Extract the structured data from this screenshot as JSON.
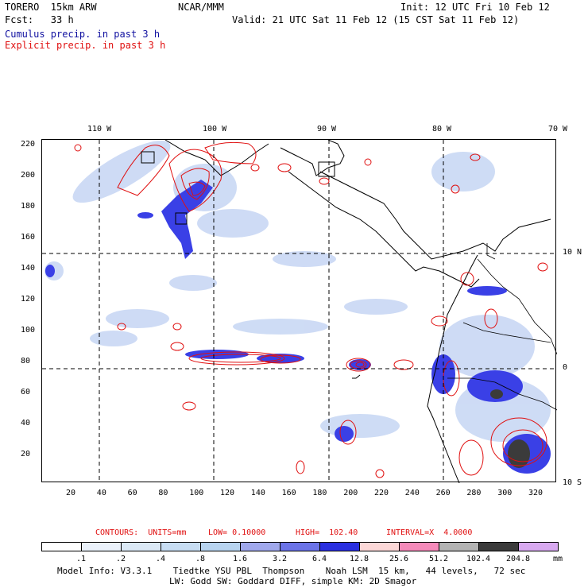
{
  "header": {
    "model": "TORERO  15km ARW",
    "org": "NCAR/MMM",
    "init": "Init: 12 UTC Fri 10 Feb 12",
    "fcst": "Fcst:   33 h",
    "valid": "Valid: 21 UTC Sat 11 Feb 12 (15 CST Sat 11 Feb 12)",
    "field1": "Cumulus precip. in past 3 h",
    "field2": "Explicit precip. in past 3 h"
  },
  "axes": {
    "x_ticks": [
      "20",
      "40",
      "60",
      "80",
      "100",
      "120",
      "140",
      "160",
      "180",
      "200",
      "220",
      "240",
      "260",
      "280",
      "300",
      "320"
    ],
    "y_ticks": [
      "20",
      "40",
      "60",
      "80",
      "100",
      "120",
      "140",
      "160",
      "180",
      "200",
      "220"
    ],
    "lon_labels": [
      "110 W",
      "100 W",
      "90 W",
      "80 W",
      "70 W"
    ],
    "lat_labels": [
      "10 N",
      "0",
      "10 S"
    ]
  },
  "contour_info": {
    "contours": "CONTOURS:  UNITS=mm",
    "low": "LOW= 0.10000",
    "high": "HIGH=  102.40",
    "interval": "INTERVAL=X  4.0000"
  },
  "legend": {
    "values": [
      ".1",
      ".2",
      ".4",
      ".8",
      "1.6",
      "3.2",
      "6.4",
      "12.8",
      "25.6",
      "51.2",
      "102.4",
      "204.8"
    ],
    "unit": "mm",
    "colors": [
      "#ffffff",
      "#ebf2fb",
      "#dbe9f6",
      "#c7ddf3",
      "#b8d4f0",
      "#a0a8ec",
      "#6b73e8",
      "#2a2fe0",
      "#fcd7d7",
      "#f58aba",
      "#b3b3b3",
      "#3b3b3b",
      "#d8a9f0"
    ]
  },
  "footer": {
    "line1": "Model Info: V3.3.1    Tiedtke YSU PBL  Thompson    Noah LSM  15 km,   44 levels,   72 sec",
    "line2": "LW: Godd SW: Goddard DIFF, simple KM: 2D Smagor"
  },
  "map_features": {
    "blue_fill": "#3a40e6",
    "light_blue_fill": "#c9d8f4",
    "contour_color": "#e01010",
    "coast_color": "#000000"
  }
}
